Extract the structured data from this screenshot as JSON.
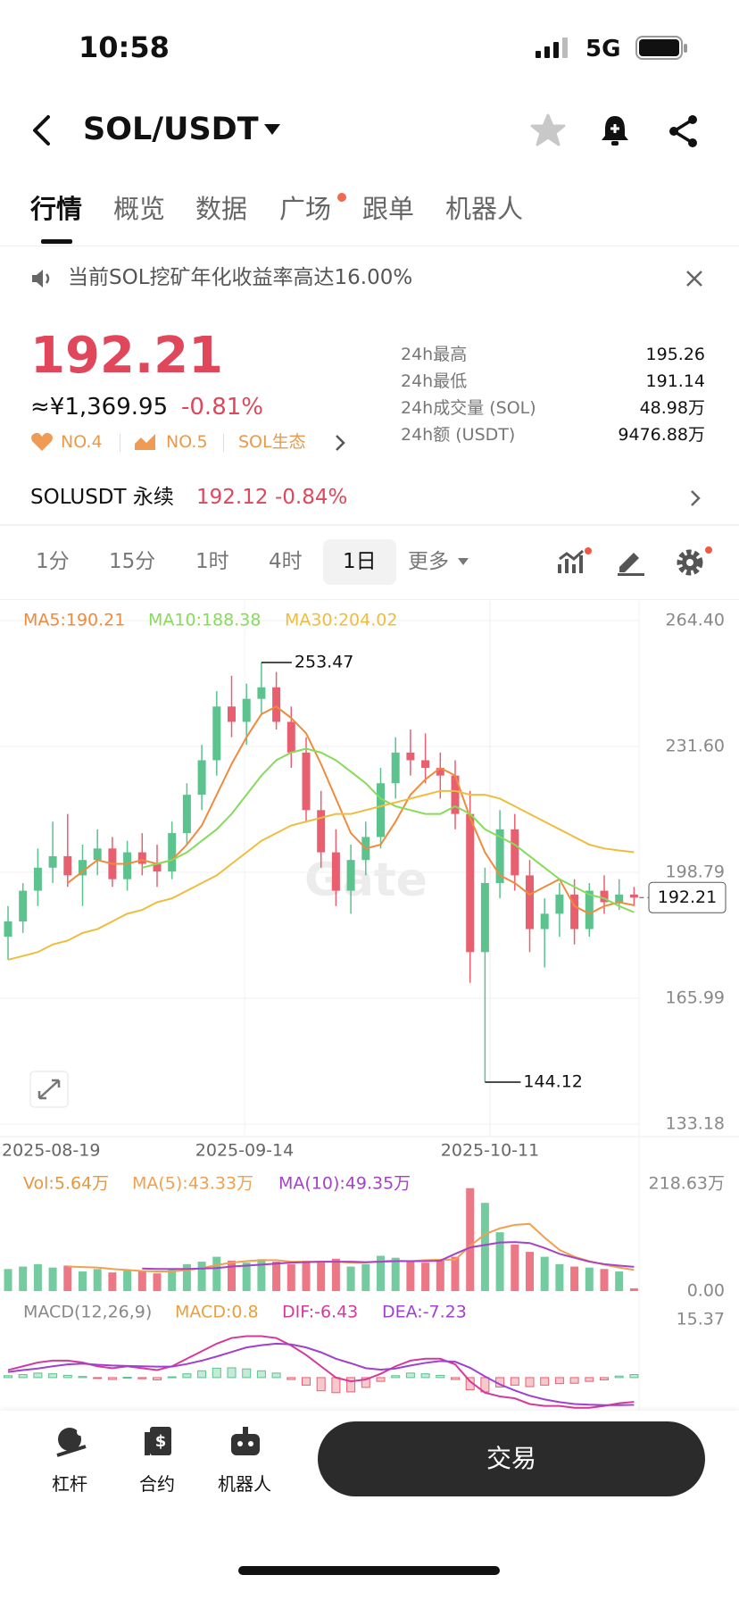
{
  "status": {
    "time": "10:58",
    "network": "5G"
  },
  "header": {
    "title": "SOL/USDT"
  },
  "tabs": [
    "行情",
    "概览",
    "数据",
    "广场",
    "跟单",
    "机器人"
  ],
  "notice": "当前SOL挖矿年化收益率高达16.00%",
  "ticker": {
    "price": "192.21",
    "cny": "≈¥1,369.95",
    "change": "-0.81%",
    "badges": [
      "NO.4",
      "NO.5",
      "SOL生态"
    ],
    "stats": [
      {
        "label": "24h最高",
        "value": "195.26"
      },
      {
        "label": "24h最低",
        "value": "191.14"
      },
      {
        "label": "24h成交量 (SOL)",
        "value": "48.98万"
      },
      {
        "label": "24h额 (USDT)",
        "value": "9476.88万"
      }
    ]
  },
  "perpetual": {
    "name": "SOLUSDT 永续",
    "price": "192.12",
    "change": "-0.84%"
  },
  "timeframes": [
    "1分",
    "15分",
    "1时",
    "4时",
    "1日",
    "更多"
  ],
  "chart": {
    "type": "candlestick",
    "up_color": "#5cc28e",
    "down_color": "#e8606f",
    "watermark": "Gate",
    "ylim": [
      133.18,
      264.4
    ],
    "yticks": [
      {
        "value": 264.4,
        "label": "264.40"
      },
      {
        "value": 231.6,
        "label": "231.60"
      },
      198.79,
      165.99,
      133.18
    ],
    "dates": [
      "2025-08-19",
      "2025-09-14",
      "2025-10-11"
    ],
    "high_label": "253.47",
    "low_label": "144.12",
    "last_price": "192.21",
    "candles": [
      [
        182,
        190,
        176,
        186
      ],
      [
        186,
        196,
        183,
        194
      ],
      [
        194,
        205,
        190,
        200
      ],
      [
        200,
        212,
        196,
        203
      ],
      [
        203,
        214,
        195,
        198
      ],
      [
        198,
        206,
        190,
        202
      ],
      [
        202,
        210,
        198,
        205
      ],
      [
        205,
        208,
        195,
        197
      ],
      [
        197,
        207,
        194,
        204
      ],
      [
        204,
        209,
        198,
        201
      ],
      [
        201,
        206,
        195,
        199
      ],
      [
        199,
        212,
        197,
        209
      ],
      [
        209,
        222,
        206,
        219
      ],
      [
        219,
        232,
        215,
        228
      ],
      [
        228,
        246,
        224,
        242
      ],
      [
        242,
        250,
        234,
        238
      ],
      [
        238,
        248,
        232,
        244
      ],
      [
        244,
        253.47,
        240,
        247
      ],
      [
        247,
        251,
        236,
        238
      ],
      [
        238,
        242,
        226,
        230
      ],
      [
        230,
        234,
        212,
        215
      ],
      [
        215,
        220,
        200,
        204
      ],
      [
        204,
        210,
        190,
        194
      ],
      [
        194,
        206,
        188,
        202
      ],
      [
        202,
        212,
        198,
        208
      ],
      [
        208,
        226,
        205,
        222
      ],
      [
        222,
        234,
        218,
        230
      ],
      [
        230,
        236,
        224,
        228
      ],
      [
        228,
        235,
        222,
        226
      ],
      [
        226,
        230,
        218,
        224
      ],
      [
        224,
        228,
        210,
        214
      ],
      [
        214,
        220,
        170,
        178
      ],
      [
        178,
        200,
        144.12,
        196
      ],
      [
        196,
        215,
        192,
        210
      ],
      [
        210,
        214,
        194,
        198
      ],
      [
        198,
        202,
        178,
        184
      ],
      [
        184,
        192,
        174,
        188
      ],
      [
        188,
        196,
        182,
        193
      ],
      [
        193,
        197,
        180,
        184
      ],
      [
        184,
        196,
        182,
        194
      ],
      [
        194,
        198,
        188,
        191
      ],
      [
        191,
        197,
        189,
        193
      ],
      [
        193,
        195,
        190,
        192.21
      ]
    ],
    "ma": [
      {
        "name": "MA5:190.21",
        "color": "#f08a3c",
        "values": [
          null,
          null,
          null,
          null,
          196,
          199,
          202,
          201,
          201,
          202,
          201,
          202,
          206,
          211,
          219,
          227,
          234,
          240,
          242,
          239,
          235,
          227,
          218,
          209,
          205,
          206,
          212,
          219,
          223,
          226,
          224,
          213,
          204,
          198,
          196,
          193,
          195,
          197,
          190,
          188,
          190,
          191,
          190.21
        ]
      },
      {
        "name": "MA10:188.38",
        "color": "#86dc5a",
        "values": [
          null,
          null,
          null,
          null,
          null,
          null,
          null,
          null,
          null,
          200,
          201,
          202,
          204,
          207,
          210,
          214,
          219,
          224,
          228,
          230,
          231,
          230,
          228,
          225,
          222,
          218,
          216,
          215,
          214,
          214,
          216,
          214,
          210,
          208,
          206,
          203,
          200,
          197,
          195,
          193,
          192,
          190,
          188.38
        ]
      },
      {
        "name": "MA30:204.02",
        "color": "#efbd3e",
        "values": [
          176,
          177,
          178,
          180,
          181,
          183,
          184,
          186,
          188,
          189,
          191,
          192,
          194,
          196,
          198,
          201,
          204,
          207,
          209,
          211,
          212,
          213,
          214,
          214,
          215,
          216,
          217,
          218,
          219,
          220,
          220,
          219,
          219,
          218,
          216,
          214,
          212,
          210,
          208,
          206,
          205,
          204.5,
          204.02
        ]
      }
    ],
    "volume": {
      "name": "Vol:5.64万",
      "ylim": [
        0,
        218.63
      ],
      "yticks": [
        {
          "value": 218.63,
          "label": "218.63万"
        },
        {
          "value": 0,
          "label": "0.00"
        }
      ],
      "values": [
        45,
        50,
        55,
        48,
        52,
        40,
        45,
        38,
        42,
        40,
        36,
        44,
        55,
        60,
        70,
        62,
        58,
        65,
        60,
        55,
        62,
        58,
        66,
        50,
        55,
        72,
        68,
        60,
        58,
        62,
        70,
        210,
        180,
        120,
        95,
        80,
        70,
        55,
        50,
        48,
        45,
        40,
        5.64
      ],
      "ma": [
        {
          "name": "MA(5):43.33万",
          "color": "#f0a050",
          "values": [
            null,
            null,
            null,
            null,
            50,
            49,
            48,
            45,
            43,
            41,
            40,
            40,
            43,
            47,
            53,
            58,
            61,
            63,
            63,
            60,
            60,
            60,
            60,
            58,
            58,
            61,
            62,
            61,
            63,
            64,
            64,
            92,
            116,
            128,
            135,
            137,
            109,
            84,
            70,
            61,
            54,
            48,
            43.33
          ]
        },
        {
          "name": "MA(10):49.35万",
          "color": "#a542c8",
          "values": [
            null,
            null,
            null,
            null,
            null,
            null,
            null,
            null,
            null,
            46,
            45,
            45,
            45,
            46,
            47,
            50,
            52,
            54,
            56,
            58,
            59,
            60,
            60,
            60,
            59,
            60,
            61,
            61,
            61,
            62,
            76,
            89,
            94,
            99,
            100,
            98,
            88,
            76,
            68,
            60,
            55,
            52,
            49.35
          ]
        }
      ]
    },
    "macd": {
      "name": "MACD(12,26,9)",
      "ylim": [
        -7.6,
        15.37
      ],
      "yticks": [
        15.37
      ],
      "hist": {
        "name": "MACD:0.8",
        "values": [
          0.5,
          0.8,
          1.2,
          1.0,
          0.6,
          0.3,
          -0.2,
          -0.5,
          0.1,
          -0.3,
          -0.6,
          0.2,
          1.0,
          1.8,
          2.5,
          2.6,
          2.3,
          1.8,
          1.2,
          -0.5,
          -2.0,
          -3.5,
          -4.0,
          -3.8,
          -2.6,
          -1.0,
          0.5,
          1.2,
          1.0,
          0.6,
          -0.5,
          -3.2,
          -3.8,
          -2.5,
          -2.0,
          -2.4,
          -2.0,
          -1.6,
          -1.5,
          -1.0,
          -0.6,
          0.4,
          0.8
        ]
      },
      "lines": [
        {
          "name": "DIF:-6.43",
          "color": "#d43a9c",
          "values": [
            2,
            3,
            4,
            4.5,
            4.5,
            4,
            3,
            2.5,
            3,
            2.5,
            2,
            3,
            5,
            7,
            9,
            10.5,
            11,
            11,
            10.5,
            8.5,
            6,
            3,
            0,
            -1,
            -0.5,
            1,
            3,
            4.5,
            5,
            5,
            3.5,
            -1,
            -4,
            -5,
            -5.5,
            -7,
            -7.5,
            -7.5,
            -8,
            -8,
            -7.5,
            -6.8,
            -6.43
          ]
        },
        {
          "name": "DEA:-7.23",
          "color": "#a040d0",
          "values": [
            1.5,
            2,
            2.4,
            3,
            3.5,
            3.7,
            3.4,
            3.2,
            3.1,
            3,
            2.9,
            2.9,
            3.6,
            4.5,
            5.6,
            6.8,
            8,
            8.6,
            9,
            8.8,
            8,
            6.7,
            5,
            3.8,
            2.5,
            2.1,
            2.4,
            3.2,
            3.9,
            4.4,
            4.2,
            2.6,
            0.3,
            -1.8,
            -3.4,
            -4.8,
            -5.8,
            -6.5,
            -7,
            -7.2,
            -7.3,
            -7.3,
            -7.23
          ]
        }
      ]
    }
  },
  "bottom": {
    "items": [
      "杠杆",
      "合约",
      "机器人"
    ],
    "button": "交易"
  }
}
